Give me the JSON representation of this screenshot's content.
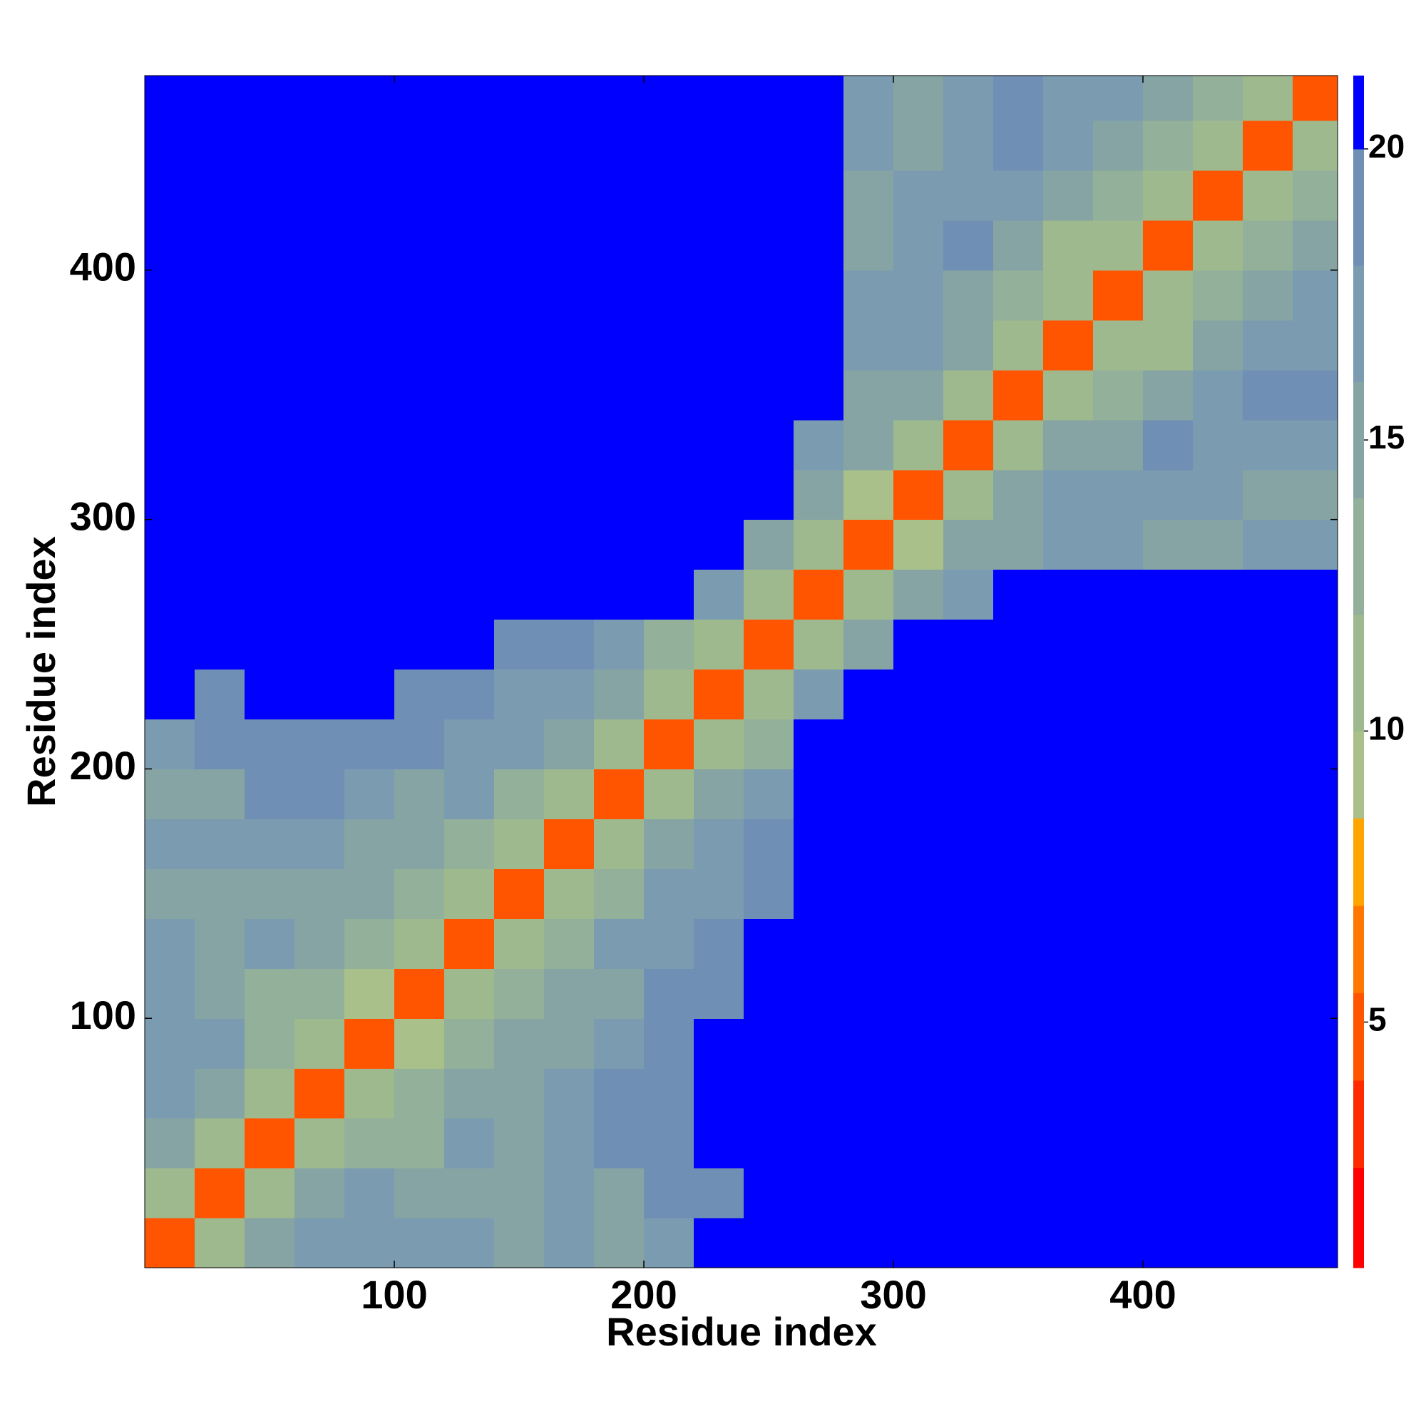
{
  "chart_data": {
    "type": "heatmap",
    "xlabel": "Residue index",
    "ylabel": "Residue index",
    "bins": [
      0,
      20,
      40,
      60,
      80,
      100,
      120,
      140,
      160,
      180,
      200,
      220,
      240,
      260,
      280,
      300,
      320,
      340,
      360,
      380,
      400,
      420,
      440,
      460,
      478
    ],
    "values": [
      [
        5,
        12,
        16,
        17,
        18,
        18,
        17,
        16,
        17,
        16,
        18,
        21,
        21,
        21,
        21,
        21,
        21,
        21,
        21,
        21,
        21,
        21,
        21,
        21
      ],
      [
        12,
        5,
        12,
        15,
        17,
        16,
        16,
        16,
        18,
        15,
        19,
        20,
        21,
        21,
        21,
        21,
        21,
        21,
        21,
        21,
        21,
        21,
        21,
        21
      ],
      [
        16,
        12,
        5,
        12,
        14,
        14,
        17,
        15,
        18,
        19,
        19,
        21,
        21,
        21,
        21,
        21,
        21,
        21,
        21,
        21,
        21,
        21,
        21,
        21
      ],
      [
        17,
        15,
        12,
        5,
        12,
        13,
        15,
        16,
        17,
        19,
        20,
        21,
        21,
        21,
        21,
        21,
        21,
        21,
        21,
        21,
        21,
        21,
        21,
        21
      ],
      [
        18,
        17,
        14,
        12,
        5,
        10,
        14,
        15,
        16,
        18,
        19,
        21,
        21,
        21,
        21,
        21,
        21,
        21,
        21,
        21,
        21,
        21,
        21,
        21
      ],
      [
        18,
        16,
        14,
        13,
        10,
        5,
        12,
        14,
        15,
        16,
        19,
        20,
        21,
        21,
        21,
        21,
        21,
        21,
        21,
        21,
        21,
        21,
        21,
        21
      ],
      [
        17,
        16,
        17,
        15,
        14,
        12,
        5,
        12,
        13,
        17,
        18,
        20,
        21,
        21,
        21,
        21,
        21,
        21,
        21,
        21,
        21,
        21,
        21,
        21
      ],
      [
        16,
        16,
        15,
        16,
        15,
        14,
        12,
        5,
        12,
        14,
        17,
        18,
        20,
        21,
        21,
        21,
        21,
        21,
        21,
        21,
        21,
        21,
        21,
        21
      ],
      [
        17,
        18,
        18,
        17,
        16,
        15,
        13,
        12,
        5,
        12,
        15,
        17,
        19,
        21,
        21,
        21,
        21,
        21,
        21,
        21,
        21,
        21,
        21,
        21
      ],
      [
        16,
        15,
        19,
        19,
        18,
        16,
        17,
        14,
        12,
        5,
        12,
        15,
        17,
        21,
        21,
        21,
        21,
        21,
        21,
        21,
        21,
        21,
        21,
        21
      ],
      [
        18,
        19,
        19,
        20,
        19,
        19,
        18,
        17,
        15,
        12,
        5,
        12,
        14,
        21,
        21,
        21,
        21,
        21,
        21,
        21,
        21,
        21,
        21,
        21
      ],
      [
        21,
        20,
        21,
        21,
        21,
        20,
        20,
        18,
        17,
        15,
        12,
        5,
        12,
        17,
        21,
        21,
        21,
        21,
        21,
        21,
        21,
        21,
        21,
        21
      ],
      [
        21,
        21,
        21,
        21,
        21,
        21,
        21,
        20,
        19,
        17,
        14,
        12,
        5,
        12,
        16,
        21,
        21,
        21,
        21,
        21,
        21,
        21,
        21,
        21
      ],
      [
        21,
        21,
        21,
        21,
        21,
        21,
        21,
        21,
        21,
        21,
        21,
        17,
        12,
        5,
        12,
        16,
        18,
        21,
        21,
        21,
        21,
        21,
        21,
        21
      ],
      [
        21,
        21,
        21,
        21,
        21,
        21,
        21,
        21,
        21,
        21,
        21,
        21,
        16,
        12,
        5,
        10,
        15,
        16,
        17,
        17,
        16,
        15,
        17,
        18
      ],
      [
        21,
        21,
        21,
        21,
        21,
        21,
        21,
        21,
        21,
        21,
        21,
        21,
        21,
        16,
        10,
        5,
        12,
        15,
        17,
        18,
        18,
        17,
        16,
        15
      ],
      [
        21,
        21,
        21,
        21,
        21,
        21,
        21,
        21,
        21,
        21,
        21,
        21,
        21,
        18,
        15,
        12,
        5,
        12,
        15,
        16,
        19,
        18,
        17,
        18
      ],
      [
        21,
        21,
        21,
        21,
        21,
        21,
        21,
        21,
        21,
        21,
        21,
        21,
        21,
        21,
        16,
        15,
        12,
        5,
        12,
        14,
        16,
        18,
        19,
        19
      ],
      [
        21,
        21,
        21,
        21,
        21,
        21,
        21,
        21,
        21,
        21,
        21,
        21,
        21,
        21,
        17,
        17,
        15,
        12,
        5,
        12,
        11,
        15,
        18,
        17
      ],
      [
        21,
        21,
        21,
        21,
        21,
        21,
        21,
        21,
        21,
        21,
        21,
        21,
        21,
        21,
        17,
        18,
        16,
        14,
        12,
        5,
        12,
        14,
        16,
        17
      ],
      [
        21,
        21,
        21,
        21,
        21,
        21,
        21,
        21,
        21,
        21,
        21,
        21,
        21,
        21,
        16,
        18,
        19,
        16,
        11,
        12,
        5,
        12,
        14,
        15
      ],
      [
        21,
        21,
        21,
        21,
        21,
        21,
        21,
        21,
        21,
        21,
        21,
        21,
        21,
        21,
        15,
        17,
        18,
        18,
        15,
        14,
        12,
        5,
        12,
        13
      ],
      [
        21,
        21,
        21,
        21,
        21,
        21,
        21,
        21,
        21,
        21,
        21,
        21,
        21,
        21,
        17,
        16,
        17,
        19,
        18,
        16,
        14,
        12,
        5,
        12
      ],
      [
        21,
        21,
        21,
        21,
        21,
        21,
        21,
        21,
        21,
        21,
        21,
        21,
        21,
        21,
        18,
        15,
        18,
        19,
        17,
        17,
        15,
        13,
        12,
        5
      ]
    ],
    "xlim": [
      0,
      478
    ],
    "ylim": [
      0,
      478
    ],
    "xticks": [
      100,
      200,
      300,
      400
    ],
    "yticks": [
      100,
      200,
      300,
      400
    ],
    "colorbar": {
      "clim": [
        0.78,
        21.26
      ],
      "ticks": [
        5,
        10,
        15,
        20
      ],
      "levels": [
        2.5,
        4,
        5.5,
        7,
        8.5,
        10,
        12,
        14,
        16,
        18,
        20
      ],
      "colors": [
        "#ff0000",
        "#ff2a00",
        "#ff5500",
        "#ff7700",
        "#ffa500",
        "#a9c08a",
        "#9fb98e",
        "#93b09a",
        "#86a4a4",
        "#7b9bb0",
        "#6f8fb4",
        "#0000ff"
      ]
    }
  }
}
